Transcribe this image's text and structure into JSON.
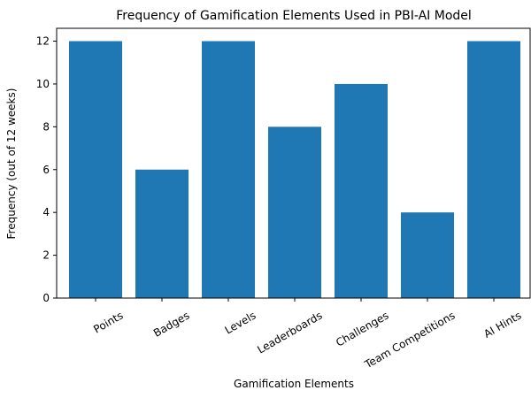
{
  "chart_data": {
    "type": "bar",
    "title": "Frequency of Gamification Elements Used in PBI-AI Model",
    "x_label": "Gamification Elements",
    "y_label": "Frequency (out of 12 weeks)",
    "categories": [
      "Points",
      "Badges",
      "Levels",
      "Leaderboards",
      "Challenges",
      "Team Competitions",
      "AI Hints"
    ],
    "values": [
      12,
      6,
      12,
      8,
      10,
      4,
      12
    ],
    "color": "#1f77b4",
    "ylim": [
      0,
      12.6
    ],
    "yticks": [
      0,
      2,
      4,
      6,
      8,
      10,
      12
    ],
    "grid": false
  }
}
